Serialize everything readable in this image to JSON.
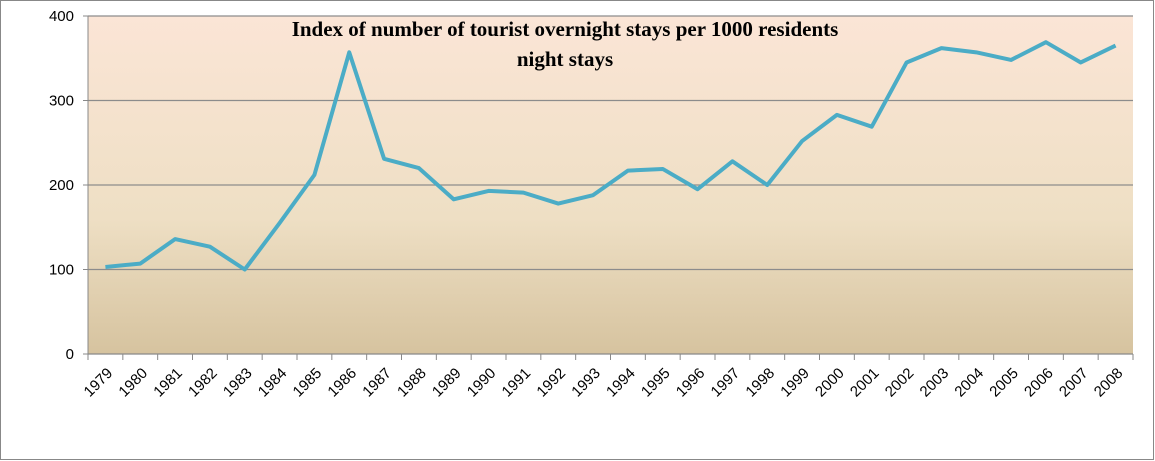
{
  "chart_data": {
    "type": "line",
    "title": "Index of number of tourist overnight stays per 1000 residents",
    "subtitle": "night stays",
    "categories": [
      "1979",
      "1980",
      "1981",
      "1982",
      "1983",
      "1984",
      "1985",
      "1986",
      "1987",
      "1988",
      "1989",
      "1990",
      "1991",
      "1992",
      "1993",
      "1994",
      "1995",
      "1996",
      "1997",
      "1998",
      "1999",
      "2000",
      "2001",
      "2002",
      "2003",
      "2004",
      "2005",
      "2006",
      "2007",
      "2008"
    ],
    "values": [
      103,
      107,
      136,
      127,
      100,
      155,
      212,
      357,
      231,
      220,
      183,
      193,
      191,
      178,
      188,
      217,
      219,
      195,
      228,
      200,
      252,
      283,
      269,
      345,
      362,
      357,
      348,
      369,
      345,
      365
    ],
    "color": "#4bacc6",
    "ylim": [
      0,
      400
    ],
    "yticks": [
      0,
      100,
      200,
      300,
      400
    ],
    "grid": true
  }
}
